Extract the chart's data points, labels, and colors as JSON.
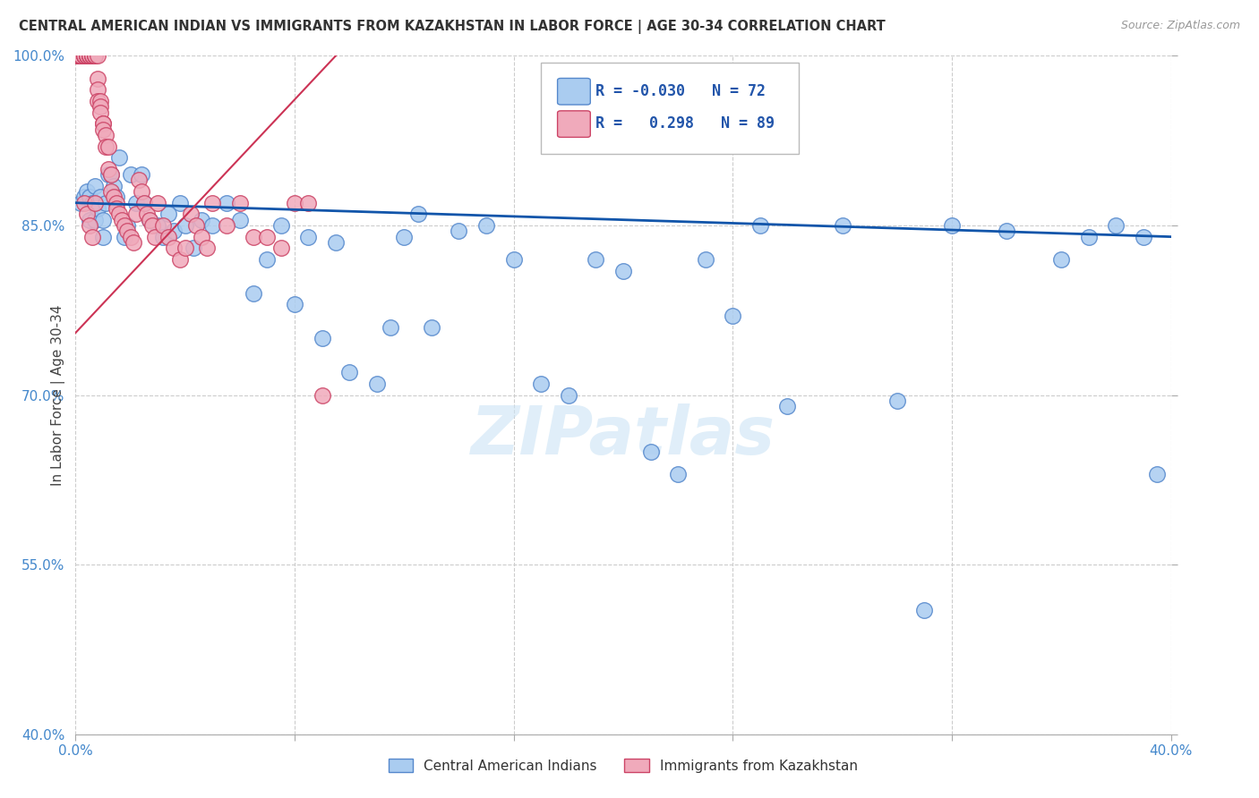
{
  "title": "CENTRAL AMERICAN INDIAN VS IMMIGRANTS FROM KAZAKHSTAN IN LABOR FORCE | AGE 30-34 CORRELATION CHART",
  "source": "Source: ZipAtlas.com",
  "ylabel": "In Labor Force | Age 30-34",
  "xlim": [
    0.0,
    0.4
  ],
  "ylim": [
    0.4,
    1.0
  ],
  "xticks": [
    0.0,
    0.08,
    0.16,
    0.24,
    0.32,
    0.4
  ],
  "xtick_labels": [
    "0.0%",
    "",
    "",
    "",
    "",
    "40.0%"
  ],
  "ytick_labels": [
    "100.0%",
    "85.0%",
    "70.0%",
    "55.0%",
    "40.0%"
  ],
  "yticks": [
    1.0,
    0.85,
    0.7,
    0.55,
    0.4
  ],
  "blue_R": -0.03,
  "blue_N": 72,
  "pink_R": 0.298,
  "pink_N": 89,
  "blue_color": "#aaccf0",
  "pink_color": "#f0aabb",
  "blue_edge": "#5588cc",
  "pink_edge": "#cc4466",
  "trend_blue": "#1155aa",
  "trend_pink": "#cc3355",
  "trend_blue_y0": 0.87,
  "trend_blue_y1": 0.84,
  "trend_pink_x0": 0.0,
  "trend_pink_y0": 0.755,
  "trend_pink_x1": 0.095,
  "trend_pink_y1": 1.0,
  "legend_label_blue": "Central American Indians",
  "legend_label_pink": "Immigrants from Kazakhstan",
  "watermark": "ZIPatlas",
  "blue_x": [
    0.002,
    0.003,
    0.004,
    0.005,
    0.005,
    0.006,
    0.007,
    0.007,
    0.008,
    0.009,
    0.01,
    0.01,
    0.011,
    0.012,
    0.013,
    0.014,
    0.015,
    0.016,
    0.018,
    0.019,
    0.02,
    0.022,
    0.024,
    0.025,
    0.027,
    0.03,
    0.032,
    0.034,
    0.036,
    0.038,
    0.04,
    0.043,
    0.046,
    0.05,
    0.055,
    0.06,
    0.065,
    0.07,
    0.075,
    0.08,
    0.085,
    0.09,
    0.095,
    0.1,
    0.11,
    0.115,
    0.12,
    0.125,
    0.13,
    0.14,
    0.15,
    0.16,
    0.17,
    0.18,
    0.19,
    0.2,
    0.21,
    0.22,
    0.23,
    0.24,
    0.25,
    0.26,
    0.28,
    0.3,
    0.32,
    0.34,
    0.36,
    0.37,
    0.38,
    0.39,
    0.31,
    0.395
  ],
  "blue_y": [
    0.87,
    0.875,
    0.88,
    0.875,
    0.855,
    0.87,
    0.885,
    0.855,
    0.865,
    0.875,
    0.855,
    0.84,
    0.87,
    0.895,
    0.895,
    0.885,
    0.875,
    0.91,
    0.84,
    0.85,
    0.895,
    0.87,
    0.895,
    0.87,
    0.855,
    0.85,
    0.84,
    0.86,
    0.845,
    0.87,
    0.85,
    0.83,
    0.855,
    0.85,
    0.87,
    0.855,
    0.79,
    0.82,
    0.85,
    0.78,
    0.84,
    0.75,
    0.835,
    0.72,
    0.71,
    0.76,
    0.84,
    0.86,
    0.76,
    0.845,
    0.85,
    0.82,
    0.71,
    0.7,
    0.82,
    0.81,
    0.65,
    0.63,
    0.82,
    0.77,
    0.85,
    0.69,
    0.85,
    0.695,
    0.85,
    0.845,
    0.82,
    0.84,
    0.85,
    0.84,
    0.51,
    0.63
  ],
  "pink_x": [
    0.001,
    0.001,
    0.001,
    0.001,
    0.001,
    0.001,
    0.002,
    0.002,
    0.002,
    0.002,
    0.002,
    0.003,
    0.003,
    0.003,
    0.003,
    0.003,
    0.004,
    0.004,
    0.004,
    0.004,
    0.005,
    0.005,
    0.005,
    0.005,
    0.005,
    0.006,
    0.006,
    0.006,
    0.006,
    0.007,
    0.007,
    0.007,
    0.008,
    0.008,
    0.008,
    0.008,
    0.009,
    0.009,
    0.009,
    0.01,
    0.01,
    0.01,
    0.011,
    0.011,
    0.012,
    0.012,
    0.013,
    0.013,
    0.014,
    0.015,
    0.015,
    0.016,
    0.017,
    0.018,
    0.019,
    0.02,
    0.021,
    0.022,
    0.023,
    0.024,
    0.025,
    0.026,
    0.027,
    0.028,
    0.029,
    0.03,
    0.032,
    0.034,
    0.036,
    0.038,
    0.04,
    0.042,
    0.044,
    0.046,
    0.048,
    0.05,
    0.055,
    0.06,
    0.065,
    0.07,
    0.075,
    0.08,
    0.085,
    0.09,
    0.003,
    0.004,
    0.005,
    0.006,
    0.007
  ],
  "pink_y": [
    1.0,
    1.0,
    1.0,
    1.0,
    1.0,
    1.0,
    1.0,
    1.0,
    1.0,
    1.0,
    1.0,
    1.0,
    1.0,
    1.0,
    1.0,
    1.0,
    1.0,
    1.0,
    1.0,
    1.0,
    1.0,
    1.0,
    1.0,
    1.0,
    1.0,
    1.0,
    1.0,
    1.0,
    1.0,
    1.0,
    1.0,
    1.0,
    1.0,
    0.98,
    0.97,
    0.96,
    0.96,
    0.955,
    0.95,
    0.94,
    0.94,
    0.935,
    0.93,
    0.92,
    0.92,
    0.9,
    0.895,
    0.88,
    0.875,
    0.87,
    0.865,
    0.86,
    0.855,
    0.85,
    0.845,
    0.84,
    0.835,
    0.86,
    0.89,
    0.88,
    0.87,
    0.86,
    0.855,
    0.85,
    0.84,
    0.87,
    0.85,
    0.84,
    0.83,
    0.82,
    0.83,
    0.86,
    0.85,
    0.84,
    0.83,
    0.87,
    0.85,
    0.87,
    0.84,
    0.84,
    0.83,
    0.87,
    0.87,
    0.7,
    0.87,
    0.86,
    0.85,
    0.84,
    0.87
  ]
}
